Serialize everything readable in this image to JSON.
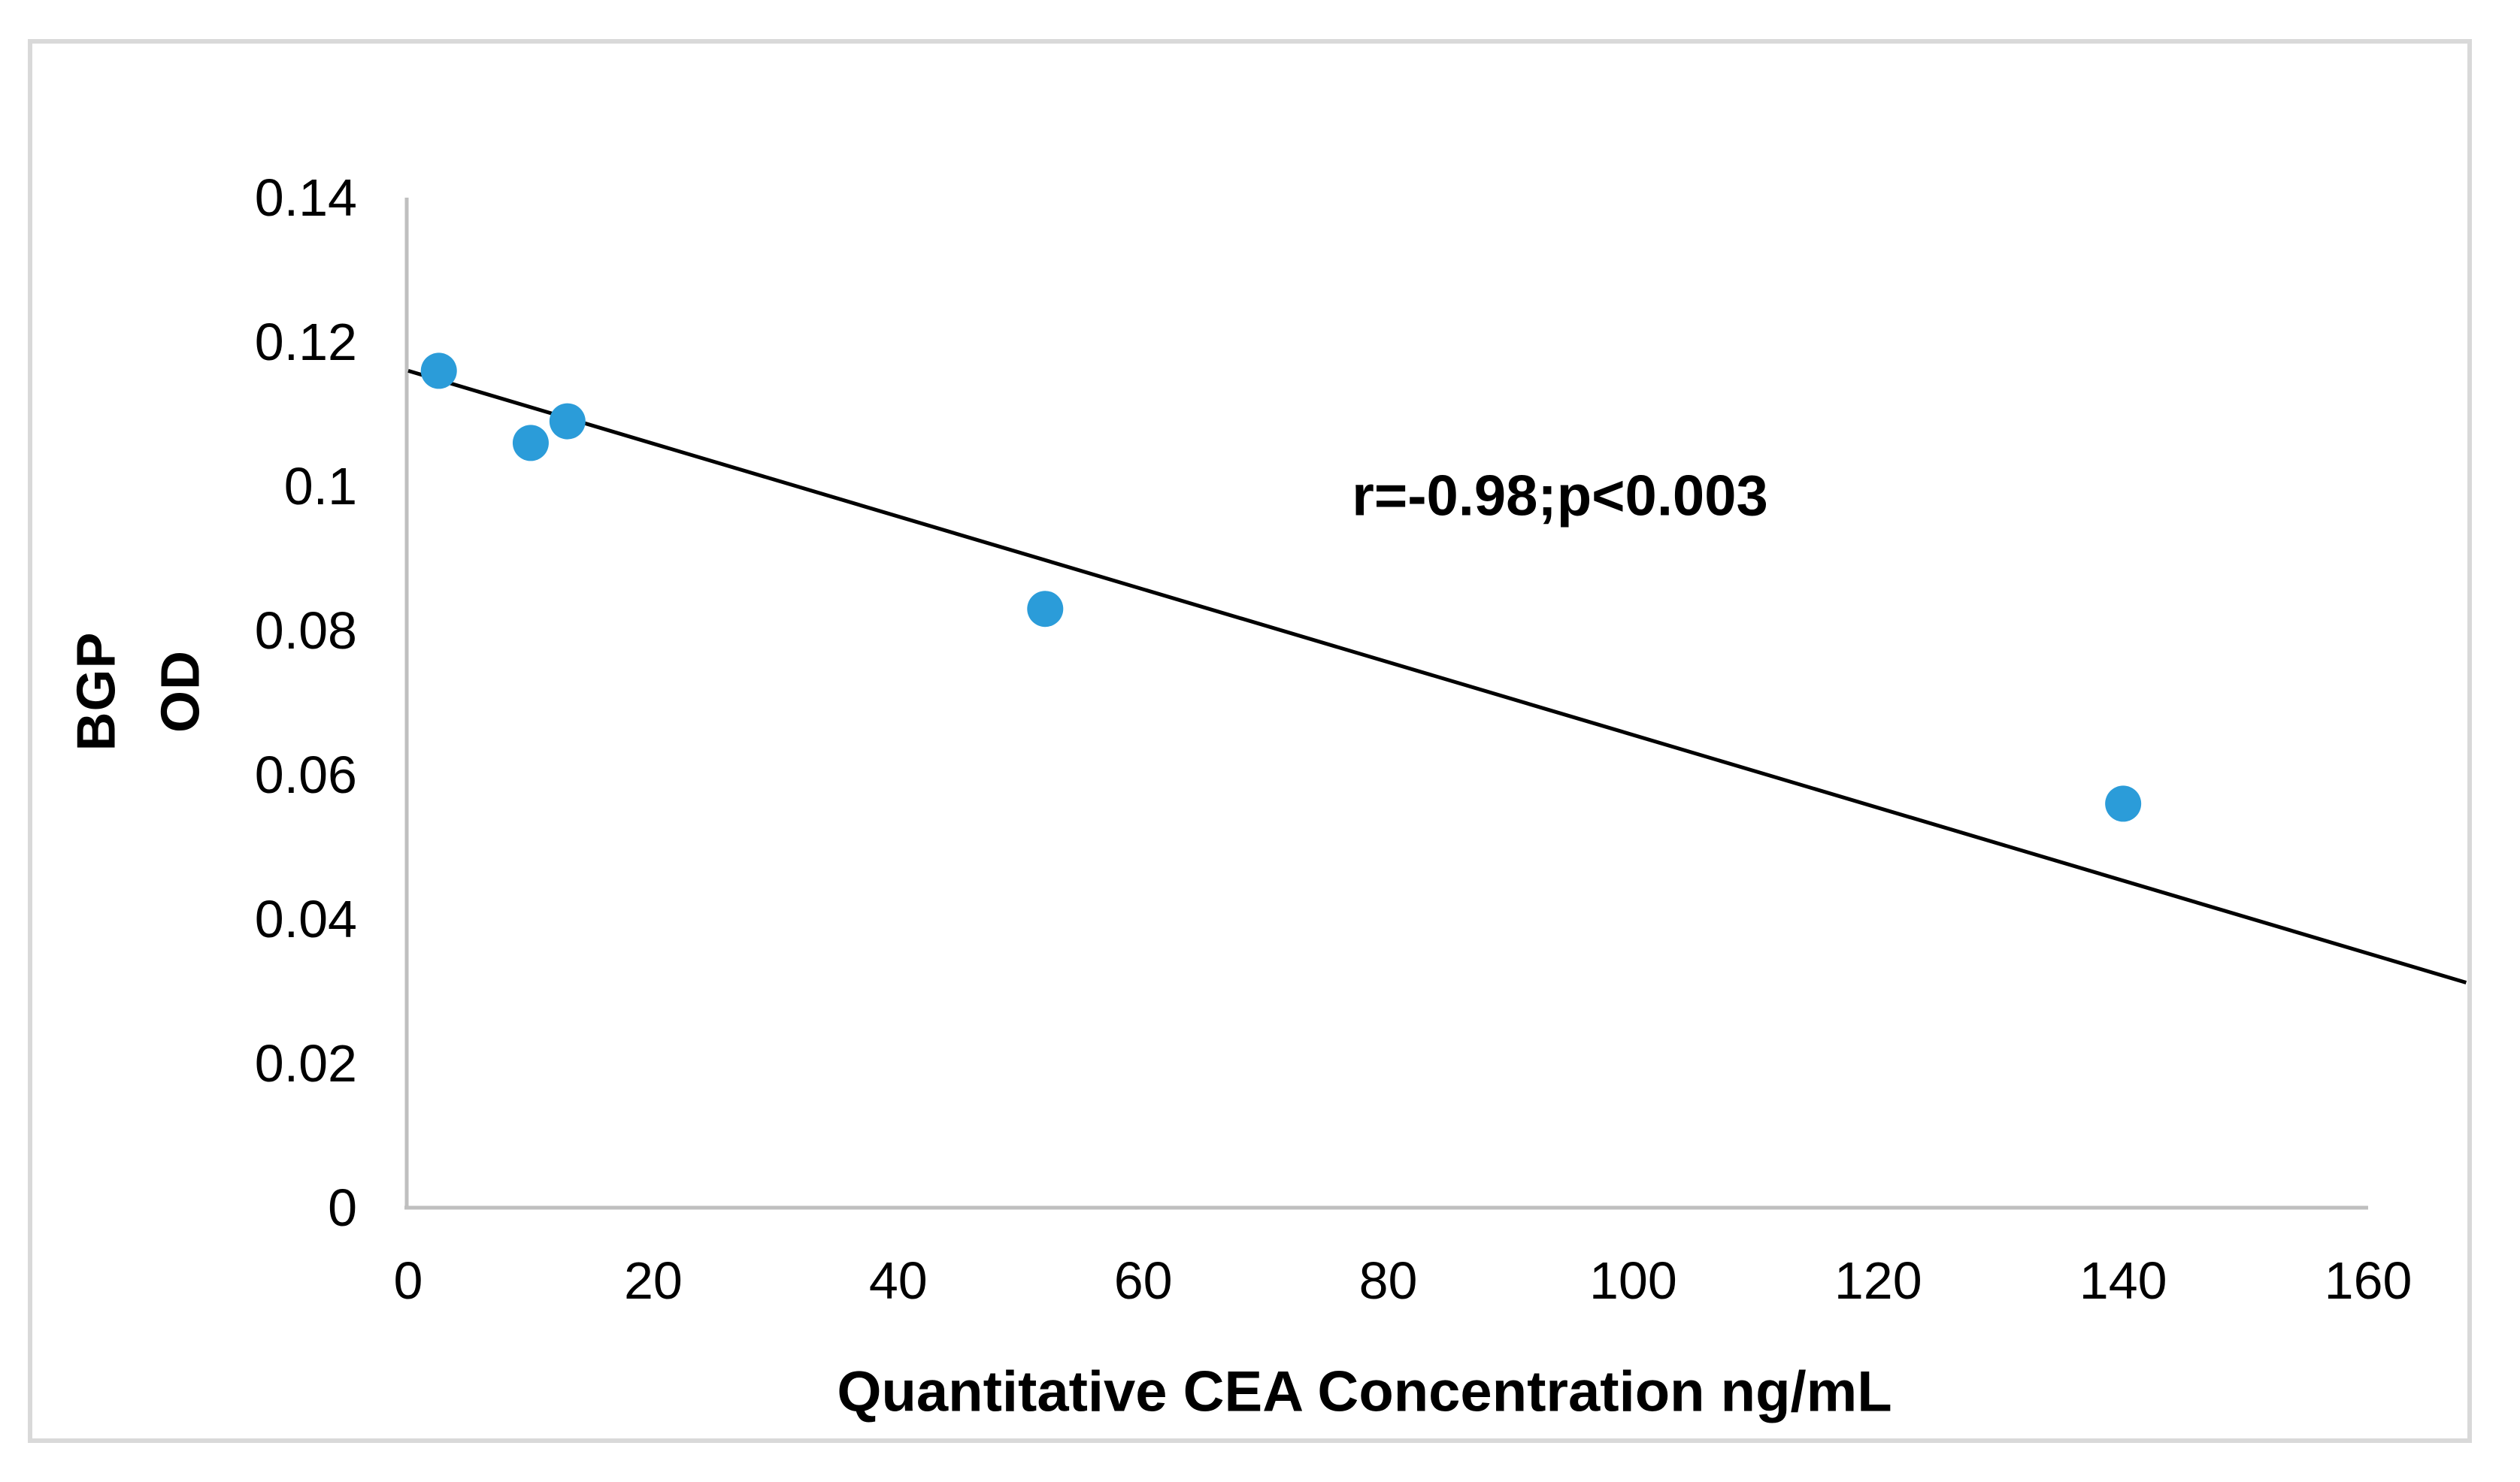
{
  "figure": {
    "kind": "scatter-plot-with-trendline",
    "background": "#ffffff",
    "border_color": "#d9d9d9"
  },
  "colors": {
    "point": "#2b9cd9",
    "trendline": "#000000",
    "axis_line": "#bfbfbf",
    "text": "#000000"
  },
  "annotation": "r=-0.98;p<0.003",
  "x_axis": {
    "title": "Quantitative CEA Concentration ng/mL",
    "ticks": [
      0,
      20,
      40,
      60,
      80,
      100,
      120,
      140,
      160
    ],
    "tick_labels": [
      "0",
      "20",
      "40",
      "60",
      "80",
      "100",
      "120",
      "140",
      "160"
    ],
    "range": [
      0,
      160
    ]
  },
  "y_axis": {
    "title": "BGP\nOD",
    "ticks": [
      0,
      0.02,
      0.04,
      0.06,
      0.08,
      0.1,
      0.12,
      0.14
    ],
    "tick_labels": [
      "0",
      "0.02",
      "0.04",
      "0.06",
      "0.08",
      "0.1",
      "0.12",
      "0.14"
    ],
    "range": [
      0,
      0.14
    ]
  },
  "chart_data": {
    "type": "scatter",
    "title": "",
    "xlabel": "Quantitative CEA Concentration ng/mL",
    "ylabel": "BGP OD",
    "annotation": "r=-0.98;p<0.003",
    "xlim": [
      0,
      160
    ],
    "ylim": [
      0,
      0.14
    ],
    "grid": false,
    "legend": "none",
    "marker_color": "#2b9cd9",
    "points": [
      {
        "x": 2.5,
        "y": 0.116
      },
      {
        "x": 10,
        "y": 0.106
      },
      {
        "x": 13,
        "y": 0.109
      },
      {
        "x": 52,
        "y": 0.083
      },
      {
        "x": 140,
        "y": 0.056
      }
    ],
    "trendline": {
      "x1": 0,
      "y1": 0.116,
      "x2": 168,
      "y2": 0.0312
    }
  }
}
